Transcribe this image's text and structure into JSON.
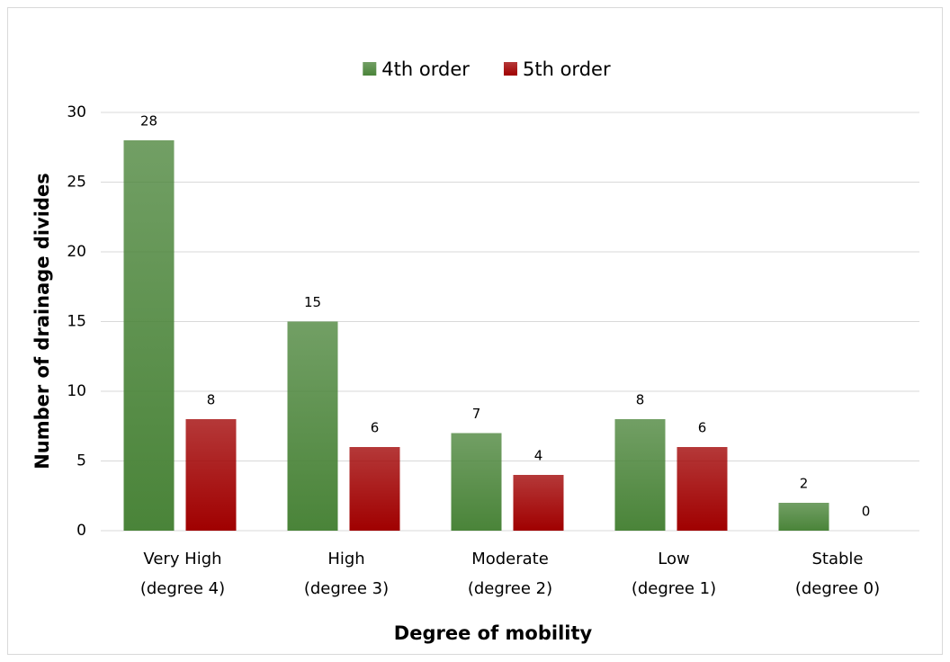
{
  "chart_data": {
    "type": "bar",
    "xlabel": "Degree of mobility",
    "ylabel": "Number of drainage divides",
    "categories": [
      [
        "Very High",
        "(degree 4)"
      ],
      [
        "High",
        "(degree 3)"
      ],
      [
        "Moderate",
        "(degree 2)"
      ],
      [
        "Low",
        "(degree 1)"
      ],
      [
        "Stable",
        "(degree 0)"
      ]
    ],
    "series": [
      {
        "name": "4th order",
        "color": "#4a8439",
        "values": [
          28,
          15,
          7,
          8,
          2
        ]
      },
      {
        "name": "5th order",
        "color": "#a00000",
        "values": [
          8,
          6,
          4,
          6,
          0
        ]
      }
    ],
    "ylim": [
      0,
      30
    ],
    "yticks": [
      0,
      5,
      10,
      15,
      20,
      25,
      30
    ],
    "grid": true,
    "legend": "top"
  }
}
